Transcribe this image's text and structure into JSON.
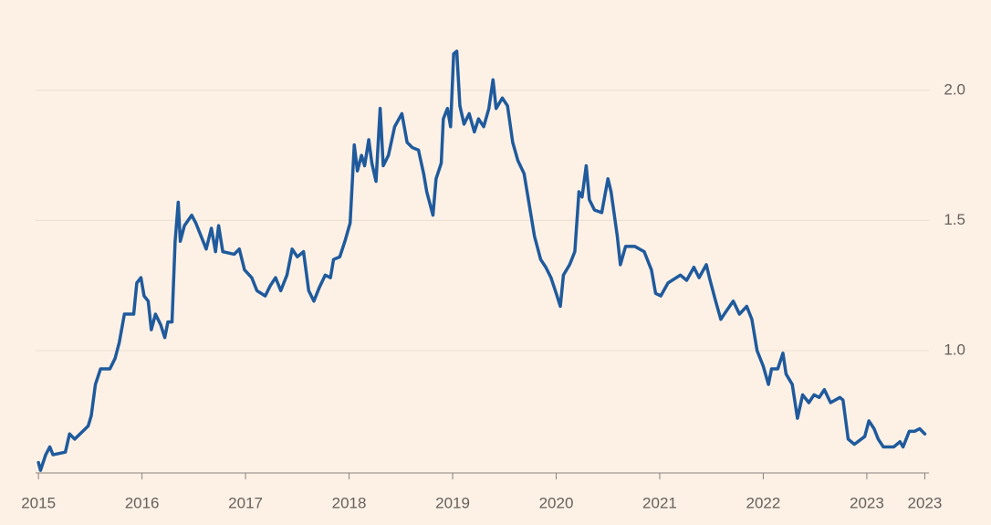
{
  "chart_data": {
    "type": "line",
    "color": "#1f5a9c",
    "grid": true,
    "xlim": [
      2014.99,
      2023.6
    ],
    "ylim": [
      0.53,
      2.28
    ],
    "xticks": [
      2015,
      2016,
      2017,
      2018,
      2019,
      2020,
      2021,
      2022,
      2023,
      {
        "value": 2023.56,
        "label": "2023"
      }
    ],
    "yticks": [
      {
        "value": 1,
        "label": "1.0"
      },
      {
        "value": 1.5,
        "label": "1.5"
      },
      {
        "value": 2,
        "label": "2.0"
      }
    ],
    "x": [
      2015.0,
      2015.02,
      2015.07,
      2015.11,
      2015.14,
      2015.26,
      2015.3,
      2015.35,
      2015.48,
      2015.51,
      2015.55,
      2015.6,
      2015.69,
      2015.74,
      2015.78,
      2015.83,
      2015.92,
      2015.95,
      2015.99,
      2016.02,
      2016.06,
      2016.09,
      2016.13,
      2016.18,
      2016.22,
      2016.25,
      2016.29,
      2016.32,
      2016.35,
      2016.37,
      2016.41,
      2016.48,
      2016.52,
      2016.57,
      2016.62,
      2016.67,
      2016.71,
      2016.74,
      2016.78,
      2016.89,
      2016.94,
      2016.99,
      2017.06,
      2017.11,
      2017.19,
      2017.24,
      2017.29,
      2017.34,
      2017.4,
      2017.45,
      2017.5,
      2017.56,
      2017.61,
      2017.66,
      2017.71,
      2017.77,
      2017.82,
      2017.85,
      2017.91,
      2017.96,
      2018.01,
      2018.05,
      2018.08,
      2018.12,
      2018.15,
      2018.19,
      2018.22,
      2018.26,
      2018.3,
      2018.33,
      2018.38,
      2018.44,
      2018.51,
      2018.56,
      2018.61,
      2018.67,
      2018.72,
      2018.75,
      2018.81,
      2018.84,
      2018.89,
      2018.91,
      2018.95,
      2018.98,
      2019.01,
      2019.04,
      2019.07,
      2019.11,
      2019.16,
      2019.21,
      2019.25,
      2019.3,
      2019.35,
      2019.39,
      2019.42,
      2019.48,
      2019.53,
      2019.58,
      2019.63,
      2019.69,
      2019.74,
      2019.79,
      2019.85,
      2019.9,
      2019.95,
      2020.0,
      2020.04,
      2020.07,
      2020.13,
      2020.18,
      2020.22,
      2020.25,
      2020.29,
      2020.32,
      2020.37,
      2020.44,
      2020.5,
      2020.53,
      2020.59,
      2020.62,
      2020.67,
      2020.76,
      2020.85,
      2020.92,
      2020.96,
      2021.01,
      2021.08,
      2021.2,
      2021.26,
      2021.33,
      2021.38,
      2021.45,
      2021.48,
      2021.54,
      2021.59,
      2021.64,
      2021.71,
      2021.77,
      2021.84,
      2021.89,
      2021.94,
      2022.0,
      2022.05,
      2022.08,
      2022.14,
      2022.19,
      2022.22,
      2022.28,
      2022.33,
      2022.38,
      2022.44,
      2022.49,
      2022.54,
      2022.59,
      2022.65,
      2022.74,
      2022.77,
      2022.82,
      2022.88,
      2022.98,
      2023.02,
      2023.07,
      2023.11,
      2023.16,
      2023.26,
      2023.32,
      2023.35,
      2023.41,
      2023.46,
      2023.51,
      2023.56
    ],
    "values": [
      0.57,
      0.54,
      0.6,
      0.63,
      0.6,
      0.61,
      0.68,
      0.66,
      0.71,
      0.75,
      0.87,
      0.93,
      0.93,
      0.97,
      1.03,
      1.14,
      1.14,
      1.26,
      1.28,
      1.21,
      1.19,
      1.08,
      1.14,
      1.1,
      1.05,
      1.11,
      1.11,
      1.42,
      1.57,
      1.42,
      1.48,
      1.52,
      1.49,
      1.44,
      1.39,
      1.47,
      1.38,
      1.48,
      1.38,
      1.37,
      1.39,
      1.31,
      1.28,
      1.23,
      1.21,
      1.25,
      1.28,
      1.23,
      1.29,
      1.39,
      1.36,
      1.38,
      1.23,
      1.19,
      1.24,
      1.29,
      1.28,
      1.35,
      1.36,
      1.42,
      1.49,
      1.79,
      1.69,
      1.75,
      1.71,
      1.81,
      1.72,
      1.65,
      1.93,
      1.71,
      1.75,
      1.86,
      1.91,
      1.8,
      1.78,
      1.77,
      1.68,
      1.61,
      1.52,
      1.66,
      1.72,
      1.89,
      1.93,
      1.86,
      2.14,
      2.15,
      1.94,
      1.87,
      1.91,
      1.84,
      1.89,
      1.86,
      1.93,
      2.04,
      1.93,
      1.97,
      1.94,
      1.8,
      1.73,
      1.68,
      1.56,
      1.44,
      1.35,
      1.32,
      1.28,
      1.22,
      1.17,
      1.29,
      1.33,
      1.38,
      1.61,
      1.59,
      1.71,
      1.58,
      1.54,
      1.53,
      1.66,
      1.61,
      1.44,
      1.33,
      1.4,
      1.4,
      1.38,
      1.31,
      1.22,
      1.21,
      1.26,
      1.29,
      1.27,
      1.32,
      1.28,
      1.33,
      1.28,
      1.19,
      1.12,
      1.15,
      1.19,
      1.14,
      1.17,
      1.12,
      1.0,
      0.94,
      0.87,
      0.93,
      0.93,
      0.99,
      0.91,
      0.87,
      0.74,
      0.83,
      0.8,
      0.83,
      0.82,
      0.85,
      0.8,
      0.82,
      0.81,
      0.66,
      0.64,
      0.67,
      0.73,
      0.7,
      0.66,
      0.63,
      0.63,
      0.65,
      0.63,
      0.69,
      0.69,
      0.7,
      0.68
    ]
  }
}
